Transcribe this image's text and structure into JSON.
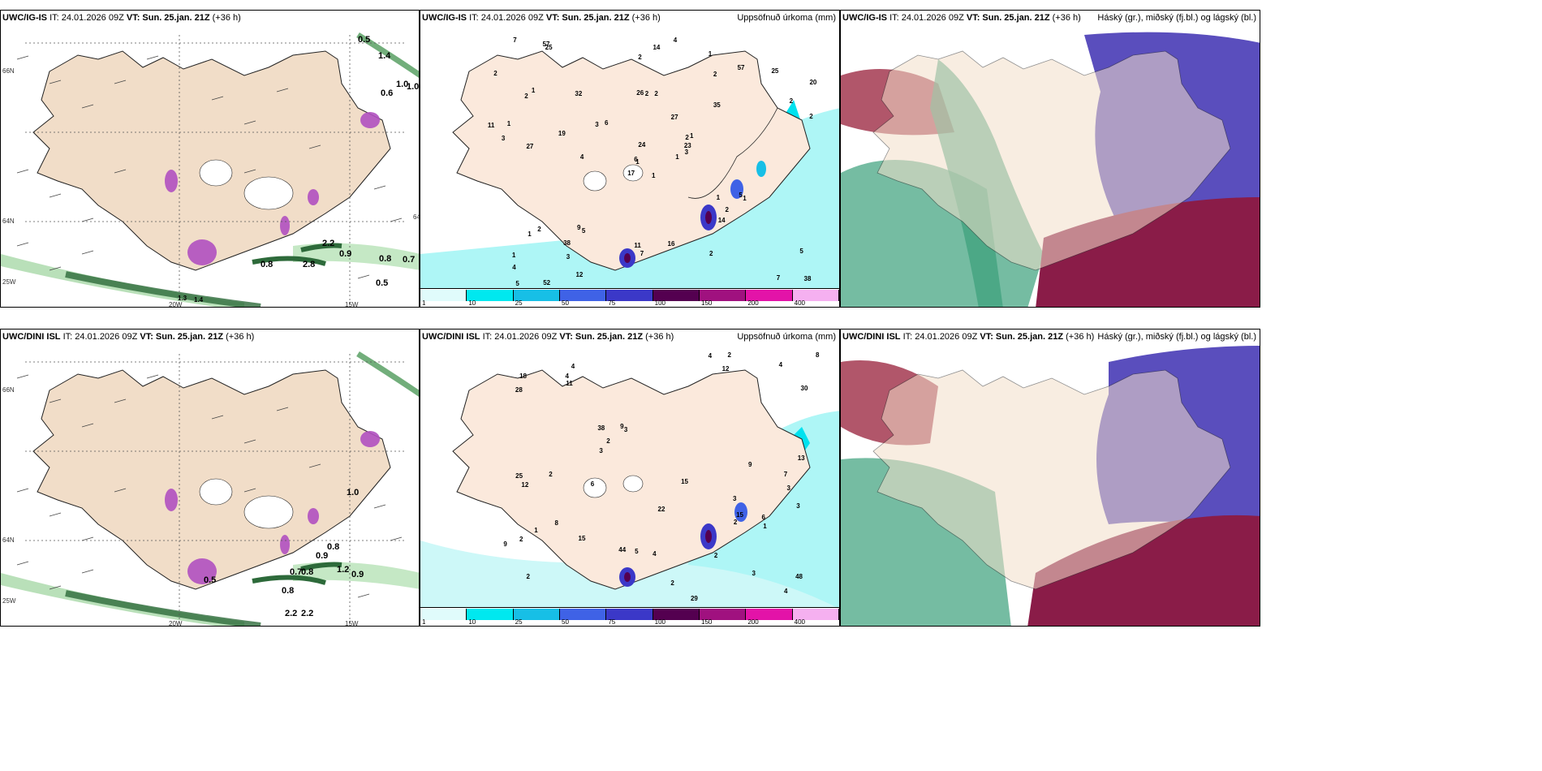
{
  "panels": [
    {
      "id": "p1",
      "model": "UWC/IG-IS",
      "run": "IT: 24.01.2026 09Z",
      "valid": "VT: Sun. 25.jan. 21Z",
      "lead": "(+36 h)",
      "title": "",
      "type": "wind"
    },
    {
      "id": "p2",
      "model": "UWC/IG-IS",
      "run": "IT: 24.01.2026 09Z",
      "valid": "VT: Sun. 25.jan. 21Z",
      "lead": "(+36 h)",
      "title": "Uppsöfnuð úrkoma (mm)",
      "type": "precip"
    },
    {
      "id": "p3",
      "model": "UWC/IG-IS",
      "run": "IT: 24.01.2026 09Z",
      "valid": "VT: Sun. 25.jan. 21Z",
      "lead": "(+36 h)",
      "title": "Háský (gr.), miðský (fj.bl.) og lágský (bl.)",
      "type": "cloud"
    },
    {
      "id": "p4",
      "model": "UWC/DINI ISL",
      "run": "IT: 24.01.2026 09Z",
      "valid": "VT: Sun. 25.jan. 21Z",
      "lead": "(+36 h)",
      "title": "",
      "type": "wind"
    },
    {
      "id": "p5",
      "model": "UWC/DINI ISL",
      "run": "IT: 24.01.2026 09Z",
      "valid": "VT: Sun. 25.jan. 21Z",
      "lead": "(+36 h)",
      "title": "Uppsöfnuð úrkoma (mm)",
      "type": "precip"
    },
    {
      "id": "p6",
      "model": "UWC/DINI ISL",
      "run": "IT: 24.01.2026 09Z",
      "valid": "VT: Sun. 25.jan. 21Z",
      "lead": "(+36 h)",
      "title": "Háský (gr.), miðský (fj.bl.) og lágský (bl.)",
      "type": "cloud"
    }
  ],
  "axes": {
    "lat_top": "66N",
    "lat_mid": "64N",
    "lon_left": "20W",
    "lon_right": "15W",
    "lon_far": "25W",
    "lat_alt": "64N"
  },
  "colorbar": {
    "ticks": [
      "1",
      "10",
      "25",
      "50",
      "75",
      "100",
      "150",
      "200",
      "400"
    ],
    "colors": [
      "#e0fbfb",
      "#00e8ef",
      "#17bfe6",
      "#3f62e6",
      "#3b38c8",
      "#540050",
      "#a0117f",
      "#e313a8",
      "#f5b0f0"
    ]
  },
  "wind_labels_top": [
    "0.5",
    "1.4",
    "1.0",
    "1.0",
    "0.6",
    "2.2",
    "0.8",
    "2.8",
    "0.9",
    "0.8",
    "0.7",
    "0.5",
    "1.3",
    "1.4"
  ],
  "wind_labels_bottom": [
    "1.0",
    "0.8",
    "0.9",
    "0.7",
    "0.8",
    "1.2",
    "0.9",
    "0.8",
    "2.2",
    "2.2",
    "0.5"
  ],
  "precip_labels_top": [
    "1",
    "2",
    "1",
    "1",
    "2",
    "5",
    "1",
    "2",
    "2",
    "1",
    "25",
    "38",
    "27",
    "20",
    "17",
    "35",
    "52",
    "26",
    "27",
    "2",
    "6",
    "4",
    "3",
    "2",
    "1",
    "1",
    "1",
    "2",
    "3",
    "1",
    "2",
    "6",
    "11",
    "24",
    "32",
    "57",
    "9",
    "7",
    "5",
    "5",
    "4",
    "3",
    "19",
    "14",
    "12",
    "11",
    "23",
    "5",
    "7",
    "3",
    "1",
    "2",
    "2",
    "2",
    "2",
    "38",
    "57",
    "7",
    "16",
    "25",
    "14",
    "4",
    "1"
  ],
  "precip_labels_bottom": [
    "3",
    "3",
    "2",
    "4",
    "3",
    "3",
    "2",
    "12",
    "38",
    "29",
    "28",
    "25",
    "18",
    "48",
    "44",
    "13",
    "22",
    "15",
    "9",
    "8",
    "8",
    "4",
    "3",
    "3",
    "4",
    "4",
    "15",
    "12",
    "11",
    "9",
    "2",
    "2",
    "2",
    "6",
    "7",
    "1",
    "2",
    "2",
    "4",
    "1",
    "30",
    "2",
    "4",
    "5",
    "6",
    "15",
    "9"
  ]
}
